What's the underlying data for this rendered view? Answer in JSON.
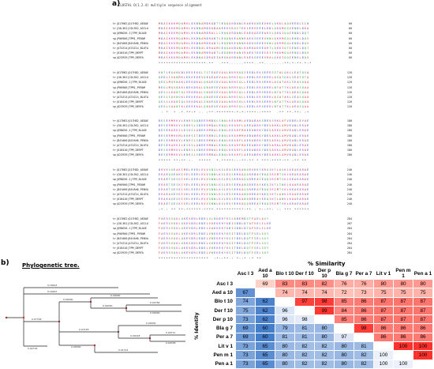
{
  "panel_a": {
    "label": "a)",
    "header": "CLUSTAL O(1.2.4) multiple sequence alignment",
    "ids": [
      "tr|Q17H82|Q17H82_AEDAE",
      "tr|C0L3K2|C0L3K2_ASCLU",
      "sp|Q9NG56.1|TPM_BLAGE",
      "sp|P06906|TPM1_PERAM",
      "tr|B4YAH6|B4YAH6_PENVA",
      "tr|A7XZ14|A7XZ14_BLOTA",
      "tr|O18416|TPM_DERPT",
      "sp|Q23939|TPM_DERFA"
    ],
    "blocks": [
      {
        "seqs": [
          "MDAIKKKMQAMKLEKDNAMDKADTCEQQARDANLRAEKVNEEVRELQKKLAQVEEDLILN",
          "MDAIKKKMQAMKLEKDNAMDRADAAEEKVRQITEKLERVEEELRDLQKKMQQVENDLDKA",
          "MDAIKKKMQAMKLEKDNAMDRALLCEQQARDANLRAEKAEEEARSLQKKIQQIENDLDQT",
          "MDAIKKKMQAMKLEKDNAMDRADTLEQQNKEANNRAEKSEEEVHNLQKRMQQLENDLDQV",
          "MDAIKKKMQAMKLEKDNAMDRADTLEQQNKEANNRAEKSEEEVHNLQKRMQQLENDLDQV",
          "MDAIKKKMQAMKLEKDNALDRAAMCEQQAKDANLRAEKAEEEARTLQKKIQTIENELDQT",
          "MDAIKKKMQAMKLEKDNAMDRADTLEQQNKEANIRAEKTEEEIRITHKKMQQVENELDQV",
          "MDAIKKKMQAMKLEKDNAIDRAEIAEQKARDANLRAEKSEEEVRALQKKIQQIENELDQV"
        ],
        "cons": "*******************.**  .***......****..**.......:**:*:**.*:*",
        "num": [
          60,
          60,
          60,
          60,
          60,
          60,
          60,
          60
        ]
      },
      {
        "seqs": [
          "KNTLEQANKDLEEKEKQLTSTEAEVAALNRRVQQIEEDLEKSEERSGTALQKLLEATQSA",
          "QEDLIVANMKLEEKEKEVQEAEAEVAALNRRIQLLEEDLERSEERLASATQKLSEATHTA",
          "QEQLMQVNAKLEEKDKALQNAESEVAALNRRIQLLEEDLERSEERLASATAKLSEASQAA",
          "MEQLMQVNAKLDEKDKALQNAESEVAALNRRIQLLEEDLERSEERLNTATTKLAEASQAA",
          "QESLLKANTQLVEKDKALSNAEGEVAALNRRIQLLEEDLERSEERLNTATTKLAEASQAA",
          "QESLSQVNGKLEEKEKALQNAESEVAALNRRIQLLEEDLERSEERLASATAKLSEASQAA",
          "QESLLKANIQLVEKDKALSNAEGEVAALNRRIQLLEEDLERSEERLNTATTKLAEASQAA",
          "QEQLSAANTKLEEKEKALQNAEGEVAALNRRIQLLEEDLERSEERLNTATTKLAEASQAA"
        ],
        "cons": " : *  * .*.**:* :. :**.*******:*:*:****::****  .** **.**: :*",
        "num": [
          120,
          120,
          120,
          120,
          120,
          120,
          120,
          120
        ]
      },
      {
        "seqs": [
          "DESERMRKVLENRSQQDEERMDQLSNQLKEARMLAEDADAKSDEVSRKLAFVEDELEVAE",
          "DESERMRKVLENRSLSDEERMDALENQLKEARFLAEEADRKYDEVARKLAMVEADLERAE",
          "DESERARKILESKGLADEERMDALENQLKEARFMAEEADKKYDEVARKLAMVEADLERAE",
          "DESERMRKMLEHRSITDEERMDGLENQLKEARMMAEDADRKYDEVARKLAMVEADLERAE",
          "DESERMRKVLENRSLSDEERMDALENQLKEARFLAEEADRKYDEVARKLAMVEADLERAE",
          "DESERARKILESKGLADEERMDALENQLKEARFMAEEADKKYDEVARKLAMVEADLERAE",
          "DESERMRKVLENRSLSDEERMDALENQLKEARFLAEEADRKYDEVARKLAMVEADLERAE",
          "DESERMRKVLENRSLSDEERMDALENQLKEARFLAEEADRKYDEVARKLAMVEADLERAE"
        ],
        "cons": "***** **:**.:.  *****  *.*****:::**:** * ***:****:** :** **",
        "num": [
          180,
          180,
          180,
          180,
          180,
          180,
          180,
          180
        ]
      },
      {
        "seqs": [
          "DRVKSGEAKIMELEEELKVVGNSLKSLEVSEEKANQRVEEYKRQIKTLAGKLKEAEARAE",
          "ERAEQGENKIVELEEELRVVGNNLKSLEVSEEKAQQREDAYEQQIRIMTSKLKEAEARAE",
          "ERAETGESKIVELEEELRVVGNNLKSLEVSEEKAQQREEAYEQQIRIMTSKLKEAEARAE",
          "ERAETGESKIVELEEELRVVGNNLKSLEVSEEKANQREEAYKEQIKTLTNKLKAAEARAE",
          "ERAETGESKIVELEEELRVVGNNLKSLEVSEEKAQQREEAYEQQIRIMTSKLKEAEARAE",
          "ERAEAGESKIVELEEELRVVGNNLKSLEVSEEKANQREEAYKEQIKTLANKLKAAEARAE",
          "ERAEAGESKIVELEEELRVVGNNLKSLEVSEEKANQREEAYKEQIKTLANKLKAAEARAE",
          "ERAETGESKIVELEEELRVVGNNLKSLEVSEEKAQQREEAYEQQIRIMTSKLKEAEARAE"
        ],
        "cons": ":*.: ** **:******:****.***********:** : *::**: :: *** ******",
        "num": [
          240,
          240,
          240,
          240,
          240,
          240,
          240,
          240
        ]
      },
      {
        "seqs": [
          "FAERSVQKLQKEVDRLEDELGLNKDRYKSLADEMDSTFAELAGY",
          "FAERSVQKLQKEVDRLEDELVAEKERYKDIGDDLDTAFVELILKE",
          "FAERSVQKLQKEVDRLEDELVAEKEKYKDIGDDLDTAFVELILKE",
          "FAERSVQKLQKEVDRLEDELVNEKEKYKSITDELDQTFSELSGY",
          "FAERSVQKLQKEVDRLEDELVNEKEKYKSITDELDQTFSELSGY",
          "FAERSVQKLQKEVDRLEDELVHEKEKYKSITDELDQTFSELSGY",
          "FAERSVQKLQKEVDRLEDELVHEKEKYKSITDELDQTFSELSGY",
          "FAERSVQKLQKEVDRLEDELVNEKEKYKSITDELDQTFSELSGY"
        ],
        "cons": "********************  :*::**.: *::* :* **  ",
        "num": [
          284,
          287,
          284,
          284,
          284,
          284,
          284,
          284
        ]
      }
    ]
  },
  "panel_b": {
    "label": "b)",
    "tree_title": "Phylogenetic tree.",
    "similarity_title": "% Similarity",
    "identity_label": "% Identity",
    "names": [
      "Asc l 3",
      "Aed a 10",
      "Blo t 10",
      "Der f 10",
      "Der p 10",
      "Bla g 7",
      "Per a 7",
      "Lit v 1",
      "Pen m 1",
      "Pen a 1"
    ],
    "matrix": [
      [
        "",
        "69",
        "83",
        "83",
        "82",
        "76",
        "76",
        "80",
        "80",
        "80"
      ],
      [
        "67",
        "",
        "74",
        "74",
        "74",
        "72",
        "73",
        "75",
        "75",
        "75"
      ],
      [
        "74",
        "62",
        "",
        "97",
        "98",
        "85",
        "86",
        "87",
        "87",
        "87"
      ],
      [
        "75",
        "62",
        "96",
        "",
        "99",
        "84",
        "86",
        "87",
        "87",
        "87"
      ],
      [
        "73",
        "62",
        "96",
        "98",
        "",
        "85",
        "86",
        "87",
        "87",
        "87"
      ],
      [
        "69",
        "60",
        "79",
        "81",
        "80",
        "",
        "98",
        "86",
        "86",
        "86"
      ],
      [
        "69",
        "60",
        "81",
        "81",
        "80",
        "97",
        "",
        "86",
        "86",
        "86"
      ],
      [
        "73",
        "65",
        "80",
        "82",
        "82",
        "80",
        "81",
        "",
        "100",
        "100"
      ],
      [
        "73",
        "65",
        "80",
        "82",
        "82",
        "80",
        "82",
        "100",
        "",
        "100"
      ],
      [
        "73",
        "65",
        "80",
        "82",
        "82",
        "80",
        "82",
        "100",
        "100",
        ""
      ]
    ],
    "tree_values": [
      "0.16623",
      "0.16647",
      "0.07728",
      "0.00000",
      "0.00000",
      "0.00000",
      "0.02766",
      "0.00000",
      "0.07218",
      "0.00000",
      "0.04018",
      "0.00711",
      "0.02036",
      "0.00000",
      "0.01741",
      "0.02716",
      "0.00000",
      "0.00000"
    ]
  },
  "colors": {
    "upper_red": "#e8463f",
    "lower_blue": "#3e78c8",
    "diag": "#ffffff"
  }
}
